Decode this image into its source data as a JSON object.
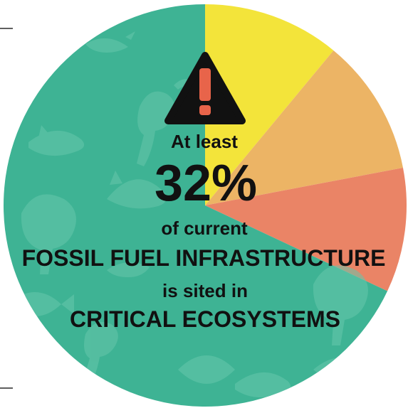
{
  "chart_data": {
    "type": "pie",
    "slices": [
      {
        "value": 68,
        "color": "#3eb394"
      },
      {
        "value": 11,
        "color": "#f3e43a"
      },
      {
        "value": 11,
        "color": "#ecb465"
      },
      {
        "value": 10,
        "color": "#ea8466"
      }
    ],
    "title": "",
    "annotation": {
      "line1": "At least",
      "big": "32%",
      "line2": "of current",
      "line3": "FOSSIL FUEL INFRASTRUCTURE",
      "line4": "is sited in",
      "line5": "CRITICAL ECOSYSTEMS"
    }
  },
  "icons": {
    "warning": "warning-icon",
    "animals": [
      "bird-icon",
      "monkey-icon",
      "whale-icon",
      "lion-icon",
      "fish-icon",
      "leaf-icon"
    ]
  },
  "colors": {
    "text": "#111111",
    "warning_fill": "#111111",
    "warning_mark": "#e8644a",
    "silhouette": "#66c6ab"
  }
}
